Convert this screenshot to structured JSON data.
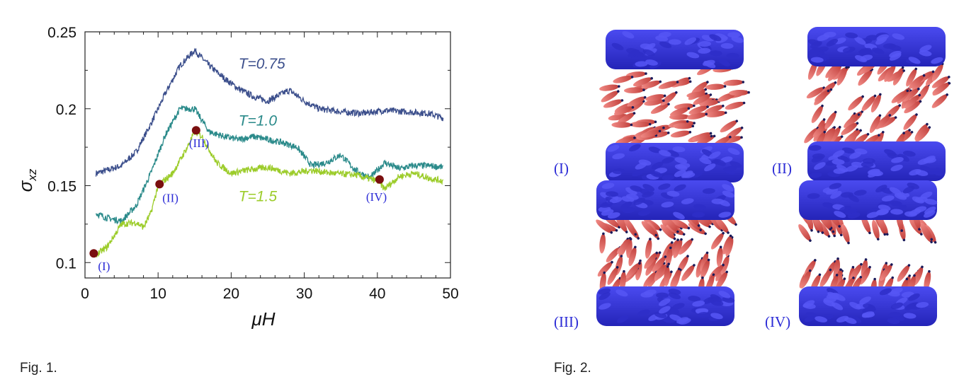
{
  "chart_data": {
    "type": "line",
    "xlabel": "μH",
    "ylabel": "σ",
    "ylabel_sub": "xz",
    "xlim": [
      0,
      50
    ],
    "ylim": [
      0.09,
      0.25
    ],
    "xticks": [
      0,
      10,
      20,
      30,
      40,
      50
    ],
    "xtick_labels": [
      "0",
      "10",
      "20",
      "30",
      "40",
      "50"
    ],
    "yticks": [
      0.1,
      0.15,
      0.2,
      0.25
    ],
    "ytick_labels": [
      "0.1",
      "0.15",
      "0.2",
      "0.25"
    ],
    "series": [
      {
        "name": "T=0.75",
        "color": "#3c4f8c",
        "x": [
          1.5,
          3,
          5,
          7,
          9,
          11,
          13,
          15,
          17,
          19,
          21,
          23,
          25,
          27,
          28,
          30,
          32,
          35,
          38,
          41,
          44,
          47,
          49
        ],
        "y": [
          0.158,
          0.16,
          0.163,
          0.172,
          0.19,
          0.21,
          0.228,
          0.238,
          0.228,
          0.22,
          0.213,
          0.208,
          0.205,
          0.21,
          0.212,
          0.205,
          0.2,
          0.198,
          0.197,
          0.199,
          0.198,
          0.197,
          0.194
        ]
      },
      {
        "name": "T=1.0",
        "color": "#2a8a8a",
        "x": [
          1.5,
          3,
          5,
          7,
          9,
          11,
          13,
          15,
          17,
          19,
          21,
          23,
          25,
          27,
          29,
          31,
          33,
          35,
          37,
          39,
          41,
          43,
          45,
          47,
          49
        ],
        "y": [
          0.132,
          0.129,
          0.127,
          0.137,
          0.158,
          0.183,
          0.2,
          0.2,
          0.185,
          0.182,
          0.18,
          0.182,
          0.18,
          0.178,
          0.175,
          0.163,
          0.165,
          0.17,
          0.16,
          0.155,
          0.165,
          0.161,
          0.163,
          0.163,
          0.162
        ]
      },
      {
        "name": "T=1.5",
        "color": "#9ccc2a",
        "x": [
          1.5,
          3,
          5,
          7,
          8,
          9,
          10,
          12,
          14,
          15,
          16,
          18,
          20,
          22,
          25,
          28,
          31,
          34,
          37,
          40,
          41,
          43,
          45,
          47,
          49
        ],
        "y": [
          0.105,
          0.11,
          0.125,
          0.126,
          0.123,
          0.132,
          0.15,
          0.158,
          0.175,
          0.185,
          0.182,
          0.165,
          0.158,
          0.16,
          0.162,
          0.158,
          0.16,
          0.158,
          0.157,
          0.153,
          0.148,
          0.156,
          0.158,
          0.155,
          0.153
        ]
      }
    ],
    "series_label_positions": [
      {
        "name": "T=0.75",
        "x": 21,
        "y": 0.226
      },
      {
        "name": "T=1.0",
        "x": 21,
        "y": 0.189
      },
      {
        "name": "T=1.5",
        "x": 21,
        "y": 0.14
      }
    ],
    "markers": [
      {
        "label": "(I)",
        "x": 1.2,
        "y": 0.106
      },
      {
        "label": "(II)",
        "x": 10.2,
        "y": 0.151
      },
      {
        "label": "(III)",
        "x": 15.2,
        "y": 0.186
      },
      {
        "label": "(IV)",
        "x": 40.3,
        "y": 0.154
      }
    ],
    "marker_color": "#7a0f0f",
    "grid": false
  },
  "captions": {
    "fig1": "Fig. 1.",
    "fig2": "Fig. 2."
  },
  "fig2": {
    "panels": [
      {
        "label": "(I)"
      },
      {
        "label": "(II)"
      },
      {
        "label": "(III)"
      },
      {
        "label": "(IV)"
      }
    ],
    "wall_color": "#3a3adf",
    "molecule_color": "#e8625e"
  }
}
